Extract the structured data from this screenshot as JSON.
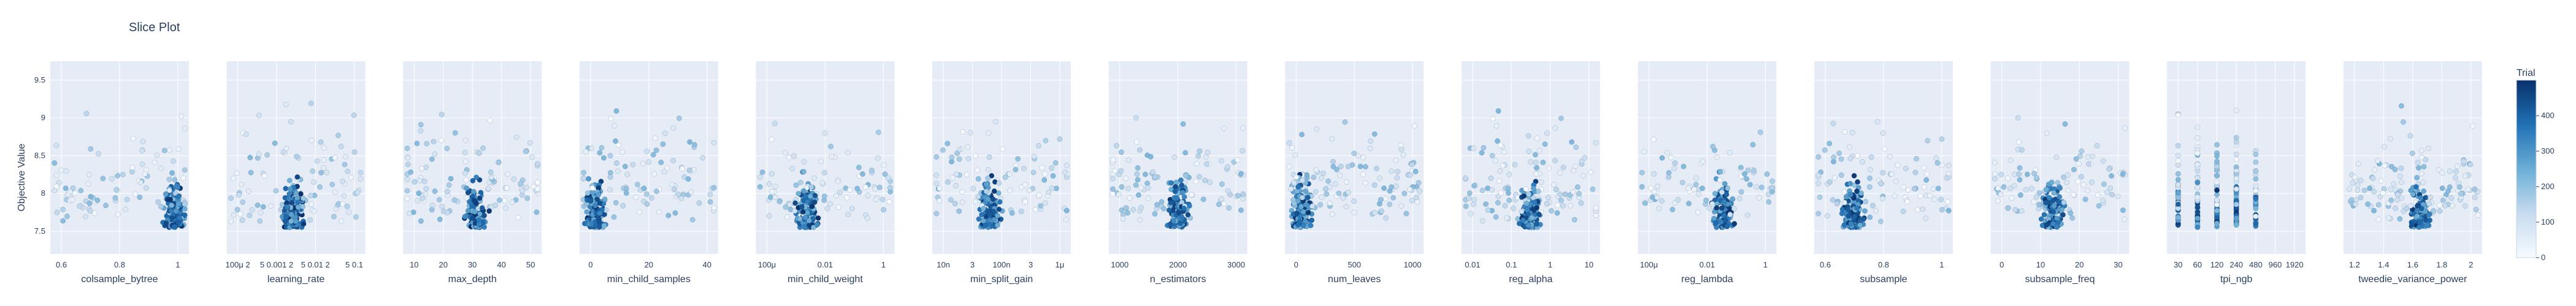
{
  "chart_data": {
    "type": "scatter",
    "title": "Slice Plot",
    "ylabel": "Objective Value",
    "ylim": [
      7.2,
      9.75
    ],
    "yticks": [
      "7.5",
      "8",
      "8.5",
      "9",
      "9.5"
    ],
    "grid": true,
    "colorbar": {
      "title": "Trial",
      "range": [
        0,
        500
      ],
      "ticks": [
        "0",
        "100",
        "200",
        "300",
        "400"
      ],
      "colorscale": [
        "#f7fbff",
        "#c6dbef",
        "#6baed6",
        "#2171b5",
        "#08306b"
      ]
    },
    "panels": [
      {
        "xlabel": "colsample_bytree",
        "xticks": [
          "0.6",
          "0.8",
          "1"
        ]
      },
      {
        "xlabel": "learning_rate",
        "xticks": [
          "100μ 2",
          "5 0.001 2",
          "5 0.01 2",
          "5 0.1"
        ]
      },
      {
        "xlabel": "max_depth",
        "xticks": [
          "10",
          "20",
          "30",
          "40",
          "50"
        ]
      },
      {
        "xlabel": "min_child_samples",
        "xticks": [
          "0",
          "20",
          "40"
        ]
      },
      {
        "xlabel": "min_child_weight",
        "xticks": [
          "100μ",
          "0.01",
          "1"
        ]
      },
      {
        "xlabel": "min_split_gain",
        "xticks": [
          "10n",
          "3",
          "100n",
          "3",
          "1μ"
        ]
      },
      {
        "xlabel": "n_estimators",
        "xticks": [
          "1000",
          "2000",
          "3000"
        ]
      },
      {
        "xlabel": "num_leaves",
        "xticks": [
          "0",
          "500",
          "1000"
        ]
      },
      {
        "xlabel": "reg_alpha",
        "xticks": [
          "0.01",
          "0.1",
          "1",
          "10"
        ]
      },
      {
        "xlabel": "reg_lambda",
        "xticks": [
          "100μ",
          "0.01",
          "1"
        ]
      },
      {
        "xlabel": "subsample",
        "xticks": [
          "0.6",
          "0.8",
          "1"
        ]
      },
      {
        "xlabel": "subsample_freq",
        "xticks": [
          "0",
          "10",
          "20",
          "30"
        ]
      },
      {
        "xlabel": "tpi_ngb",
        "xticks": [
          "30",
          "60",
          "120",
          "240",
          "480",
          "960",
          "1920"
        ]
      },
      {
        "xlabel": "tweedie_variance_power",
        "xticks": [
          "1.2",
          "1.4",
          "1.6",
          "1.8",
          "2"
        ]
      }
    ]
  }
}
